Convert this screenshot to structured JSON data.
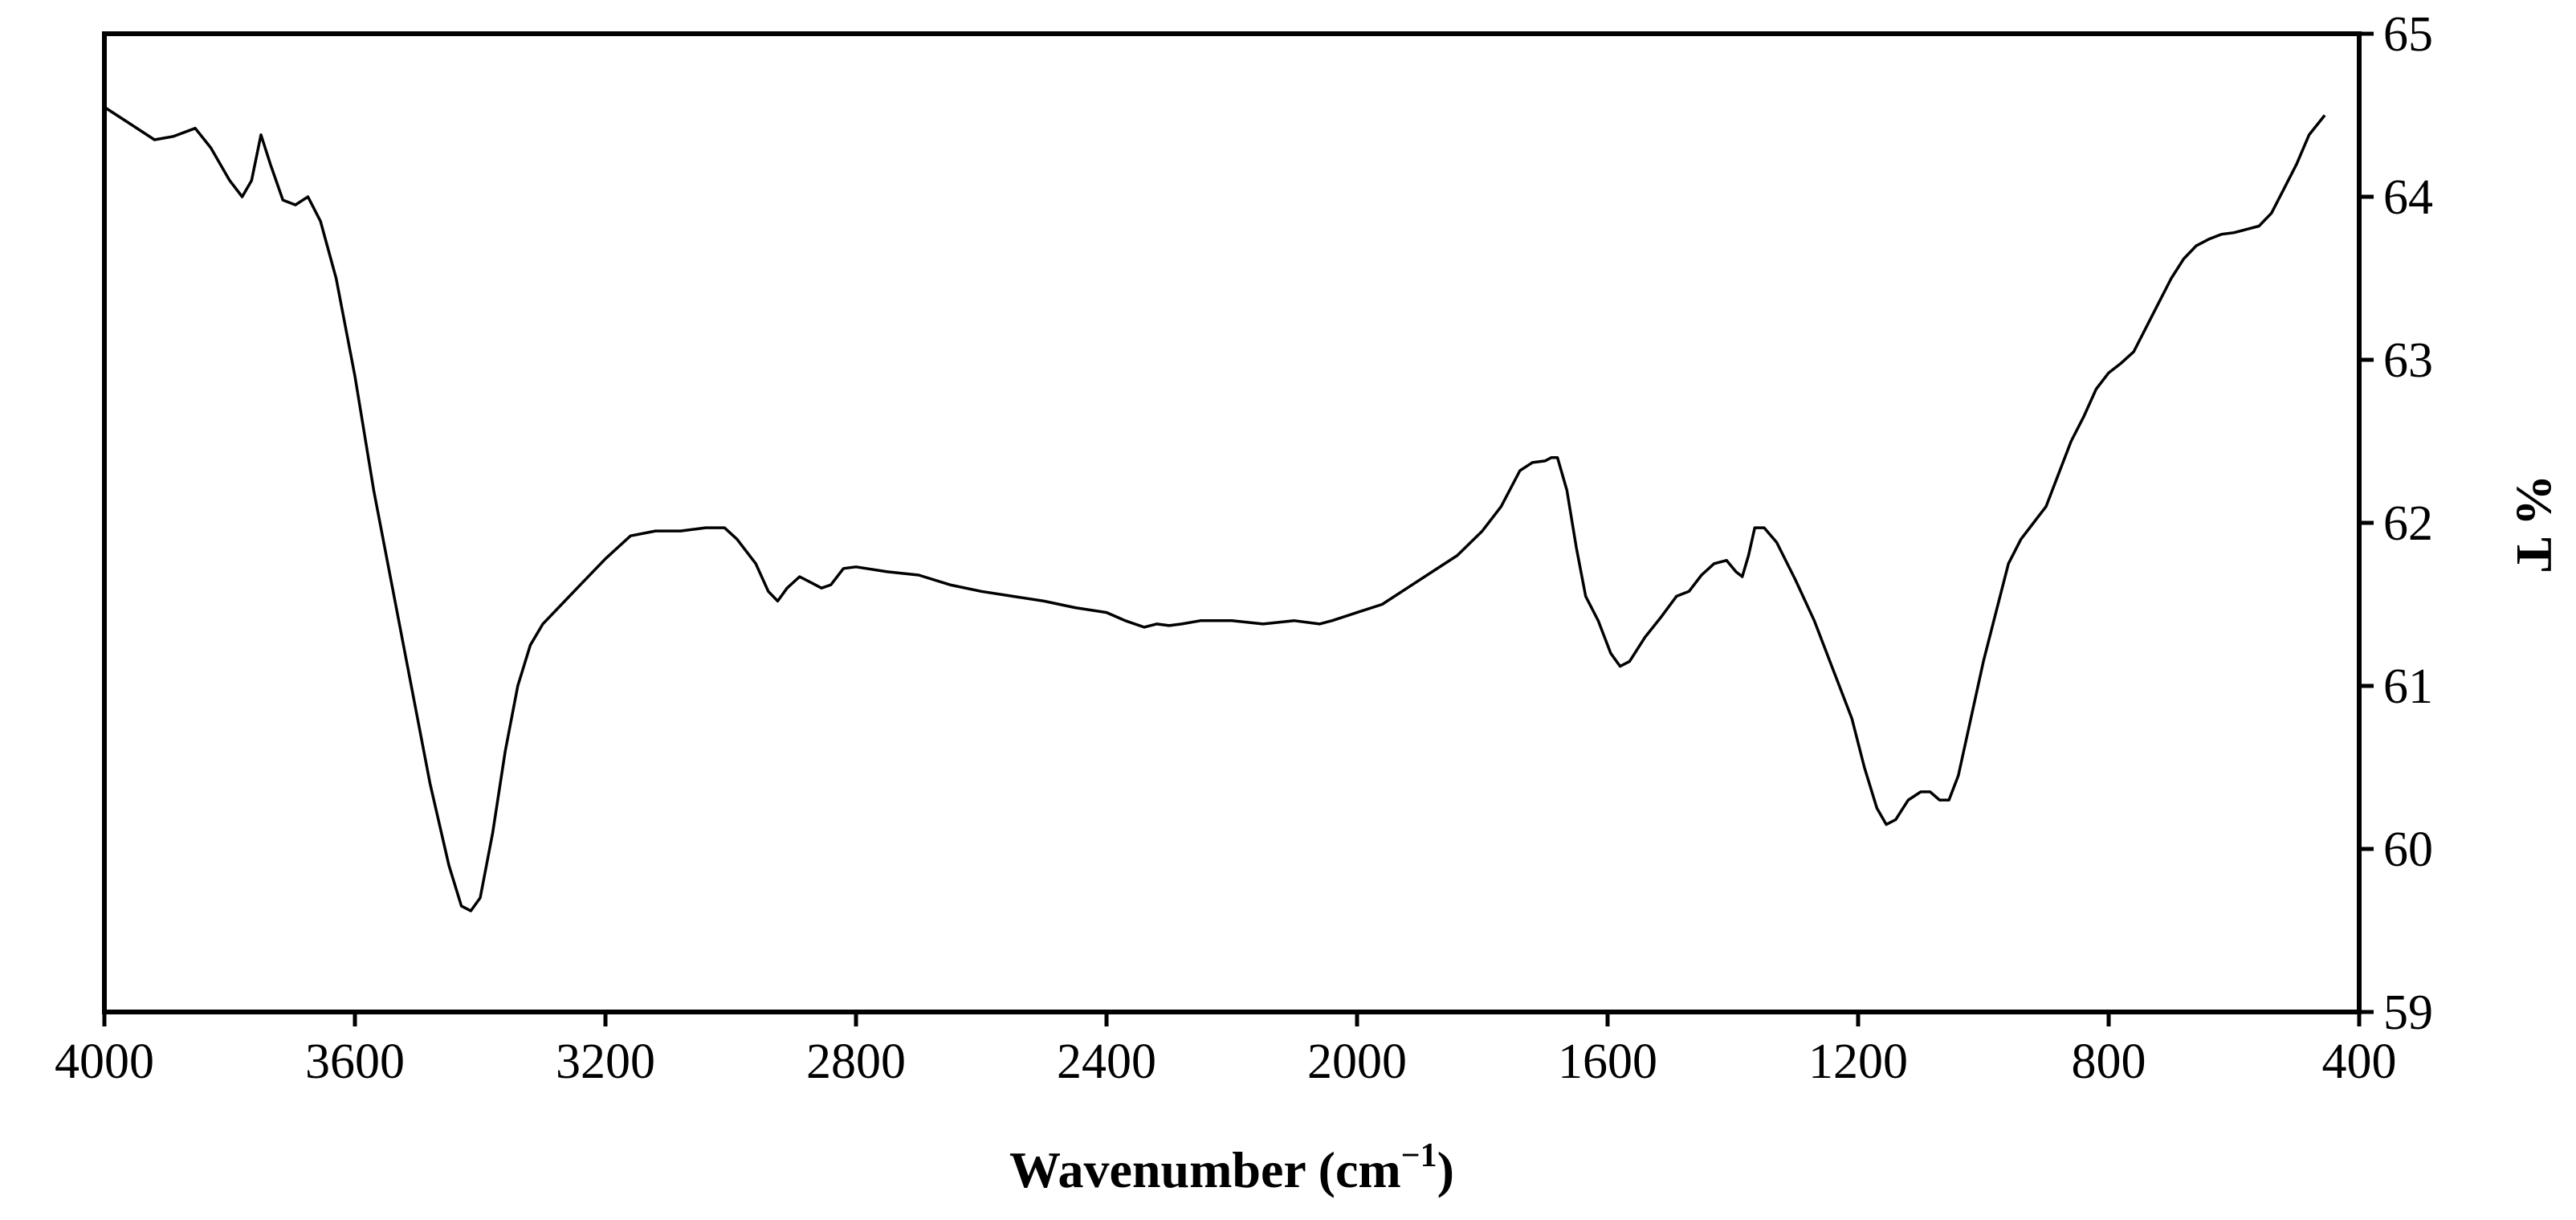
{
  "chart_data": {
    "type": "line",
    "title": "",
    "xlabel": "Wavenumber (cm",
    "xlabel_superscript": "−1",
    "xlabel_close": ")",
    "ylabel": "% T",
    "xlim": [
      4000,
      400
    ],
    "ylim": [
      59,
      65
    ],
    "x_reversed": true,
    "y_axis_position": "right",
    "grid": false,
    "legend": "none",
    "line_color": "#000000",
    "x_ticks": [
      "4000",
      "3600",
      "3200",
      "2800",
      "2400",
      "2000",
      "1600",
      "1200",
      "800",
      "400"
    ],
    "y_ticks": [
      "59",
      "60",
      "61",
      "62",
      "63",
      "64",
      "65"
    ],
    "series": [
      {
        "points": [
          [
            4000,
            64.55
          ],
          [
            3960,
            64.45
          ],
          [
            3920,
            64.35
          ],
          [
            3890,
            64.37
          ],
          [
            3855,
            64.42
          ],
          [
            3830,
            64.3
          ],
          [
            3800,
            64.1
          ],
          [
            3780,
            64.0
          ],
          [
            3765,
            64.1
          ],
          [
            3750,
            64.38
          ],
          [
            3735,
            64.2
          ],
          [
            3715,
            63.98
          ],
          [
            3695,
            63.95
          ],
          [
            3675,
            64.0
          ],
          [
            3655,
            63.85
          ],
          [
            3630,
            63.5
          ],
          [
            3600,
            62.9
          ],
          [
            3570,
            62.2
          ],
          [
            3540,
            61.6
          ],
          [
            3510,
            61.0
          ],
          [
            3480,
            60.4
          ],
          [
            3450,
            59.9
          ],
          [
            3430,
            59.65
          ],
          [
            3415,
            59.62
          ],
          [
            3400,
            59.7
          ],
          [
            3380,
            60.1
          ],
          [
            3360,
            60.6
          ],
          [
            3340,
            61.0
          ],
          [
            3320,
            61.25
          ],
          [
            3300,
            61.38
          ],
          [
            3270,
            61.5
          ],
          [
            3240,
            61.62
          ],
          [
            3200,
            61.78
          ],
          [
            3160,
            61.92
          ],
          [
            3120,
            61.95
          ],
          [
            3080,
            61.95
          ],
          [
            3040,
            61.97
          ],
          [
            3010,
            61.97
          ],
          [
            2990,
            61.9
          ],
          [
            2960,
            61.75
          ],
          [
            2940,
            61.58
          ],
          [
            2925,
            61.52
          ],
          [
            2910,
            61.6
          ],
          [
            2890,
            61.67
          ],
          [
            2870,
            61.63
          ],
          [
            2855,
            61.6
          ],
          [
            2840,
            61.62
          ],
          [
            2820,
            61.72
          ],
          [
            2800,
            61.73
          ],
          [
            2750,
            61.7
          ],
          [
            2700,
            61.68
          ],
          [
            2650,
            61.62
          ],
          [
            2600,
            61.58
          ],
          [
            2550,
            61.55
          ],
          [
            2500,
            61.52
          ],
          [
            2450,
            61.48
          ],
          [
            2400,
            61.45
          ],
          [
            2370,
            61.4
          ],
          [
            2340,
            61.36
          ],
          [
            2320,
            61.38
          ],
          [
            2300,
            61.37
          ],
          [
            2280,
            61.38
          ],
          [
            2250,
            61.4
          ],
          [
            2200,
            61.4
          ],
          [
            2150,
            61.38
          ],
          [
            2100,
            61.4
          ],
          [
            2060,
            61.38
          ],
          [
            2040,
            61.4
          ],
          [
            2000,
            61.45
          ],
          [
            1960,
            61.5
          ],
          [
            1920,
            61.6
          ],
          [
            1880,
            61.7
          ],
          [
            1840,
            61.8
          ],
          [
            1800,
            61.95
          ],
          [
            1770,
            62.1
          ],
          [
            1740,
            62.32
          ],
          [
            1720,
            62.37
          ],
          [
            1700,
            62.38
          ],
          [
            1690,
            62.4
          ],
          [
            1680,
            62.4
          ],
          [
            1665,
            62.2
          ],
          [
            1650,
            61.85
          ],
          [
            1635,
            61.55
          ],
          [
            1615,
            61.4
          ],
          [
            1595,
            61.2
          ],
          [
            1580,
            61.12
          ],
          [
            1565,
            61.15
          ],
          [
            1540,
            61.3
          ],
          [
            1515,
            61.42
          ],
          [
            1490,
            61.55
          ],
          [
            1470,
            61.58
          ],
          [
            1450,
            61.68
          ],
          [
            1430,
            61.75
          ],
          [
            1410,
            61.77
          ],
          [
            1395,
            61.7
          ],
          [
            1385,
            61.67
          ],
          [
            1375,
            61.8
          ],
          [
            1365,
            61.97
          ],
          [
            1350,
            61.97
          ],
          [
            1330,
            61.88
          ],
          [
            1300,
            61.65
          ],
          [
            1270,
            61.4
          ],
          [
            1240,
            61.1
          ],
          [
            1210,
            60.8
          ],
          [
            1190,
            60.5
          ],
          [
            1170,
            60.25
          ],
          [
            1155,
            60.15
          ],
          [
            1140,
            60.18
          ],
          [
            1120,
            60.3
          ],
          [
            1100,
            60.35
          ],
          [
            1085,
            60.35
          ],
          [
            1070,
            60.3
          ],
          [
            1055,
            60.3
          ],
          [
            1040,
            60.45
          ],
          [
            1020,
            60.8
          ],
          [
            1000,
            61.15
          ],
          [
            980,
            61.45
          ],
          [
            960,
            61.75
          ],
          [
            940,
            61.9
          ],
          [
            920,
            62.0
          ],
          [
            900,
            62.1
          ],
          [
            880,
            62.3
          ],
          [
            860,
            62.5
          ],
          [
            840,
            62.65
          ],
          [
            820,
            62.82
          ],
          [
            800,
            62.92
          ],
          [
            780,
            62.98
          ],
          [
            760,
            63.05
          ],
          [
            740,
            63.2
          ],
          [
            720,
            63.35
          ],
          [
            700,
            63.5
          ],
          [
            680,
            63.62
          ],
          [
            660,
            63.7
          ],
          [
            640,
            63.74
          ],
          [
            620,
            63.77
          ],
          [
            600,
            63.78
          ],
          [
            580,
            63.8
          ],
          [
            560,
            63.82
          ],
          [
            540,
            63.9
          ],
          [
            520,
            64.05
          ],
          [
            500,
            64.2
          ],
          [
            480,
            64.38
          ],
          [
            455,
            64.5
          ]
        ]
      }
    ]
  }
}
